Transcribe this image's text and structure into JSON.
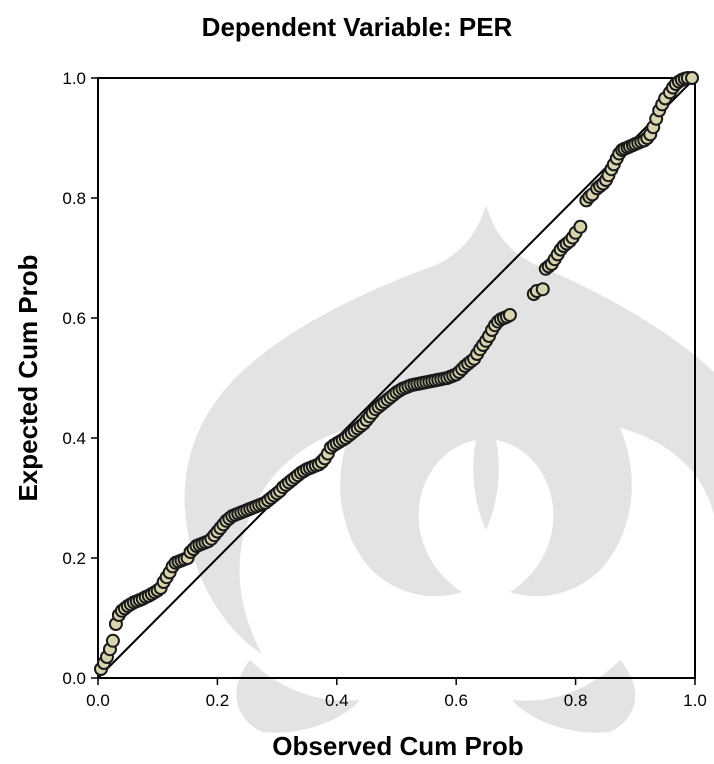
{
  "chart_data": {
    "type": "scatter",
    "title": "Dependent Variable: PER",
    "xlabel": "Observed Cum Prob",
    "ylabel": "Expected Cum Prob",
    "xlim": [
      0.0,
      1.0
    ],
    "ylim": [
      0.0,
      1.0
    ],
    "x_ticks": [
      "0.0",
      "0.2",
      "0.4",
      "0.6",
      "0.8",
      "1.0"
    ],
    "y_ticks": [
      "0.0",
      "0.2",
      "0.4",
      "0.6",
      "0.8",
      "1.0"
    ],
    "grid": false,
    "reference_line": {
      "from": [
        0.0,
        0.0
      ],
      "to": [
        1.0,
        1.0
      ]
    },
    "point_fill": "#d8d4b0",
    "point_stroke": "#1a1a1a",
    "points": [
      [
        0.005,
        0.015
      ],
      [
        0.01,
        0.025
      ],
      [
        0.015,
        0.035
      ],
      [
        0.02,
        0.048
      ],
      [
        0.025,
        0.062
      ],
      [
        0.03,
        0.09
      ],
      [
        0.035,
        0.105
      ],
      [
        0.04,
        0.112
      ],
      [
        0.045,
        0.116
      ],
      [
        0.05,
        0.12
      ],
      [
        0.055,
        0.123
      ],
      [
        0.06,
        0.126
      ],
      [
        0.065,
        0.128
      ],
      [
        0.07,
        0.13
      ],
      [
        0.075,
        0.132
      ],
      [
        0.08,
        0.135
      ],
      [
        0.085,
        0.137
      ],
      [
        0.09,
        0.14
      ],
      [
        0.095,
        0.143
      ],
      [
        0.1,
        0.146
      ],
      [
        0.105,
        0.15
      ],
      [
        0.11,
        0.16
      ],
      [
        0.115,
        0.168
      ],
      [
        0.12,
        0.176
      ],
      [
        0.125,
        0.186
      ],
      [
        0.13,
        0.192
      ],
      [
        0.135,
        0.194
      ],
      [
        0.14,
        0.196
      ],
      [
        0.145,
        0.198
      ],
      [
        0.15,
        0.2
      ],
      [
        0.155,
        0.21
      ],
      [
        0.16,
        0.215
      ],
      [
        0.165,
        0.22
      ],
      [
        0.17,
        0.222
      ],
      [
        0.175,
        0.224
      ],
      [
        0.18,
        0.226
      ],
      [
        0.185,
        0.228
      ],
      [
        0.19,
        0.232
      ],
      [
        0.195,
        0.238
      ],
      [
        0.2,
        0.244
      ],
      [
        0.205,
        0.25
      ],
      [
        0.21,
        0.256
      ],
      [
        0.215,
        0.262
      ],
      [
        0.22,
        0.266
      ],
      [
        0.225,
        0.27
      ],
      [
        0.23,
        0.272
      ],
      [
        0.235,
        0.274
      ],
      [
        0.24,
        0.276
      ],
      [
        0.245,
        0.278
      ],
      [
        0.25,
        0.28
      ],
      [
        0.255,
        0.282
      ],
      [
        0.26,
        0.284
      ],
      [
        0.265,
        0.286
      ],
      [
        0.27,
        0.288
      ],
      [
        0.275,
        0.29
      ],
      [
        0.28,
        0.292
      ],
      [
        0.285,
        0.296
      ],
      [
        0.29,
        0.3
      ],
      [
        0.295,
        0.304
      ],
      [
        0.3,
        0.308
      ],
      [
        0.305,
        0.312
      ],
      [
        0.31,
        0.318
      ],
      [
        0.315,
        0.322
      ],
      [
        0.32,
        0.326
      ],
      [
        0.325,
        0.33
      ],
      [
        0.33,
        0.334
      ],
      [
        0.335,
        0.338
      ],
      [
        0.34,
        0.342
      ],
      [
        0.345,
        0.345
      ],
      [
        0.35,
        0.348
      ],
      [
        0.355,
        0.35
      ],
      [
        0.36,
        0.352
      ],
      [
        0.365,
        0.354
      ],
      [
        0.37,
        0.356
      ],
      [
        0.375,
        0.36
      ],
      [
        0.38,
        0.366
      ],
      [
        0.385,
        0.374
      ],
      [
        0.39,
        0.384
      ],
      [
        0.395,
        0.388
      ],
      [
        0.4,
        0.391
      ],
      [
        0.405,
        0.394
      ],
      [
        0.41,
        0.397
      ],
      [
        0.415,
        0.4
      ],
      [
        0.42,
        0.404
      ],
      [
        0.425,
        0.408
      ],
      [
        0.43,
        0.412
      ],
      [
        0.435,
        0.416
      ],
      [
        0.44,
        0.42
      ],
      [
        0.445,
        0.424
      ],
      [
        0.45,
        0.43
      ],
      [
        0.455,
        0.436
      ],
      [
        0.46,
        0.442
      ],
      [
        0.465,
        0.448
      ],
      [
        0.47,
        0.452
      ],
      [
        0.475,
        0.456
      ],
      [
        0.48,
        0.46
      ],
      [
        0.485,
        0.464
      ],
      [
        0.49,
        0.468
      ],
      [
        0.495,
        0.472
      ],
      [
        0.5,
        0.476
      ],
      [
        0.505,
        0.479
      ],
      [
        0.51,
        0.482
      ],
      [
        0.515,
        0.484
      ],
      [
        0.52,
        0.486
      ],
      [
        0.525,
        0.488
      ],
      [
        0.53,
        0.489
      ],
      [
        0.535,
        0.49
      ],
      [
        0.54,
        0.491
      ],
      [
        0.545,
        0.492
      ],
      [
        0.55,
        0.493
      ],
      [
        0.555,
        0.494
      ],
      [
        0.56,
        0.495
      ],
      [
        0.565,
        0.496
      ],
      [
        0.57,
        0.497
      ],
      [
        0.575,
        0.498
      ],
      [
        0.58,
        0.499
      ],
      [
        0.585,
        0.5
      ],
      [
        0.59,
        0.502
      ],
      [
        0.595,
        0.504
      ],
      [
        0.6,
        0.506
      ],
      [
        0.605,
        0.51
      ],
      [
        0.61,
        0.515
      ],
      [
        0.615,
        0.52
      ],
      [
        0.62,
        0.524
      ],
      [
        0.625,
        0.528
      ],
      [
        0.63,
        0.532
      ],
      [
        0.635,
        0.54
      ],
      [
        0.64,
        0.548
      ],
      [
        0.645,
        0.555
      ],
      [
        0.65,
        0.562
      ],
      [
        0.655,
        0.57
      ],
      [
        0.66,
        0.58
      ],
      [
        0.665,
        0.588
      ],
      [
        0.67,
        0.594
      ],
      [
        0.675,
        0.598
      ],
      [
        0.68,
        0.6
      ],
      [
        0.685,
        0.602
      ],
      [
        0.69,
        0.605
      ],
      [
        0.73,
        0.64
      ],
      [
        0.735,
        0.645
      ],
      [
        0.745,
        0.648
      ],
      [
        0.75,
        0.682
      ],
      [
        0.755,
        0.686
      ],
      [
        0.76,
        0.69
      ],
      [
        0.765,
        0.698
      ],
      [
        0.77,
        0.706
      ],
      [
        0.775,
        0.714
      ],
      [
        0.78,
        0.72
      ],
      [
        0.785,
        0.724
      ],
      [
        0.79,
        0.728
      ],
      [
        0.795,
        0.734
      ],
      [
        0.8,
        0.742
      ],
      [
        0.808,
        0.752
      ],
      [
        0.818,
        0.796
      ],
      [
        0.823,
        0.802
      ],
      [
        0.828,
        0.806
      ],
      [
        0.836,
        0.816
      ],
      [
        0.841,
        0.82
      ],
      [
        0.846,
        0.824
      ],
      [
        0.851,
        0.83
      ],
      [
        0.855,
        0.838
      ],
      [
        0.86,
        0.848
      ],
      [
        0.864,
        0.856
      ],
      [
        0.869,
        0.866
      ],
      [
        0.873,
        0.874
      ],
      [
        0.878,
        0.88
      ],
      [
        0.882,
        0.882
      ],
      [
        0.887,
        0.884
      ],
      [
        0.891,
        0.886
      ],
      [
        0.896,
        0.888
      ],
      [
        0.9,
        0.89
      ],
      [
        0.905,
        0.892
      ],
      [
        0.91,
        0.894
      ],
      [
        0.915,
        0.896
      ],
      [
        0.92,
        0.9
      ],
      [
        0.925,
        0.906
      ],
      [
        0.93,
        0.918
      ],
      [
        0.935,
        0.932
      ],
      [
        0.94,
        0.946
      ],
      [
        0.945,
        0.956
      ],
      [
        0.95,
        0.966
      ],
      [
        0.958,
        0.976
      ],
      [
        0.963,
        0.984
      ],
      [
        0.968,
        0.99
      ],
      [
        0.973,
        0.994
      ],
      [
        0.978,
        0.997
      ],
      [
        0.983,
        0.999
      ],
      [
        0.988,
        1.0
      ],
      [
        0.995,
        1.0
      ]
    ]
  }
}
